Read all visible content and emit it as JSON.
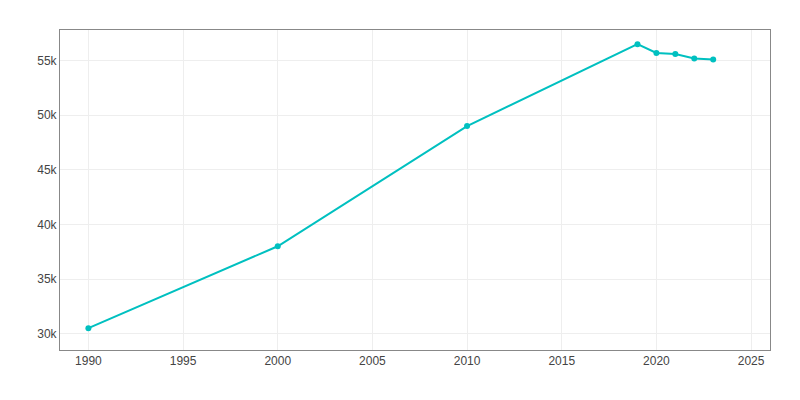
{
  "chart_data": {
    "type": "line",
    "x": [
      1990,
      2000,
      2010,
      2019,
      2020,
      2021,
      2022,
      2023
    ],
    "values": [
      30500,
      38000,
      49000,
      56500,
      55700,
      55600,
      55200,
      55100
    ],
    "color": "#00C0C0",
    "marker": "circle",
    "xlim": [
      1988.5,
      2026
    ],
    "ylim": [
      28500,
      57800
    ],
    "xticks": [
      1990,
      1995,
      2000,
      2005,
      2010,
      2015,
      2020,
      2025
    ],
    "yticks": [
      {
        "value": 30000,
        "label": "30k"
      },
      {
        "value": 35000,
        "label": "35k"
      },
      {
        "value": 40000,
        "label": "40k"
      },
      {
        "value": 45000,
        "label": "45k"
      },
      {
        "value": 50000,
        "label": "50k"
      },
      {
        "value": 55000,
        "label": "55k"
      }
    ],
    "grid": true
  }
}
